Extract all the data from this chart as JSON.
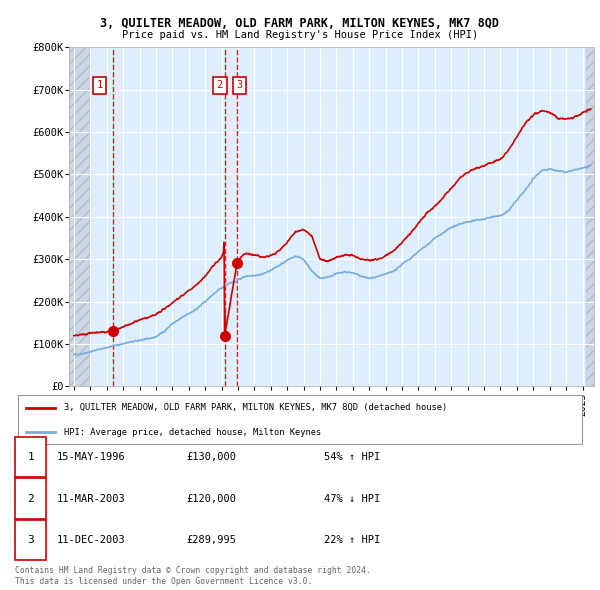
{
  "title": "3, QUILTER MEADOW, OLD FARM PARK, MILTON KEYNES, MK7 8QD",
  "subtitle": "Price paid vs. HM Land Registry's House Price Index (HPI)",
  "xlim_start": 1993.7,
  "xlim_end": 2025.7,
  "ylim": [
    0,
    800000
  ],
  "yticks": [
    0,
    100000,
    200000,
    300000,
    400000,
    500000,
    600000,
    700000,
    800000
  ],
  "ytick_labels": [
    "£0",
    "£100K",
    "£200K",
    "£300K",
    "£400K",
    "£500K",
    "£600K",
    "£700K",
    "£800K"
  ],
  "sale_dates_num": [
    1996.37,
    2003.19,
    2003.94
  ],
  "sale_prices": [
    130000,
    120000,
    289995
  ],
  "sale_labels": [
    "1",
    "2",
    "3"
  ],
  "legend_line1": "3, QUILTER MEADOW, OLD FARM PARK, MILTON KEYNES, MK7 8QD (detached house)",
  "legend_line2": "HPI: Average price, detached house, Milton Keynes",
  "table_rows": [
    [
      "1",
      "15-MAY-1996",
      "£130,000",
      "54% ↑ HPI"
    ],
    [
      "2",
      "11-MAR-2003",
      "£120,000",
      "47% ↓ HPI"
    ],
    [
      "3",
      "11-DEC-2003",
      "£289,995",
      "22% ↑ HPI"
    ]
  ],
  "footer": "Contains HM Land Registry data © Crown copyright and database right 2024.\nThis data is licensed under the Open Government Licence v3.0.",
  "hpi_color": "#7aacda",
  "sale_color": "#cc0000",
  "bg_color": "#ddeeff",
  "hatch_color": "#c8c8c8"
}
